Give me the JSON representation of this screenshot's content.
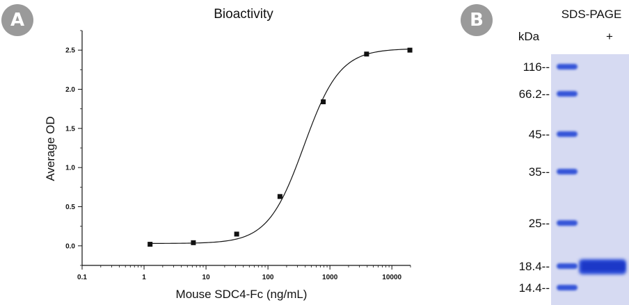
{
  "panel_a": {
    "badge": "A",
    "chart_data": {
      "type": "scatter",
      "title": "Bioactivity",
      "xlabel": "Mouse SDC4-Fc (ng/mL)",
      "ylabel": "Average OD",
      "xscale": "log",
      "xlim": [
        0.1,
        20000
      ],
      "ylim": [
        -0.25,
        2.75
      ],
      "x_ticks": [
        0.1,
        1,
        10,
        100,
        1000,
        10000
      ],
      "x_tick_labels": [
        "0.1",
        "1",
        "10",
        "100",
        "1000",
        "10000"
      ],
      "y_ticks": [
        0.0,
        0.5,
        1.0,
        1.5,
        2.0,
        2.5
      ],
      "y_tick_labels": [
        "0.0",
        "0.5",
        "1.0",
        "1.5",
        "2.0",
        "2.5"
      ],
      "grid": false,
      "series": [
        {
          "x": [
            1.25,
            6.25,
            31.25,
            156.25,
            781.25,
            3906.25,
            19531.25
          ],
          "values": [
            0.02,
            0.04,
            0.15,
            0.63,
            1.84,
            2.45,
            2.5
          ]
        }
      ],
      "fit": {
        "type": "4PL",
        "bottom": 0.03,
        "top": 2.52,
        "ec50": 380,
        "hill": 1.5
      }
    }
  },
  "panel_b": {
    "badge": "B",
    "title": "SDS-PAGE",
    "unit_label": "kDa",
    "lane_label": "+",
    "markers": [
      "116--",
      "66.2--",
      "45--",
      "35--",
      "25--",
      "18.4--",
      "14.4--"
    ],
    "colors": {
      "background": "#dde1f5",
      "band": "#1f3fd0"
    }
  }
}
